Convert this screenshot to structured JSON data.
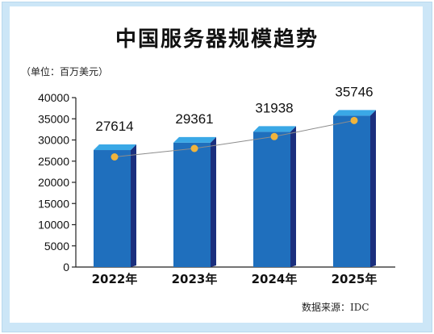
{
  "chart_data": {
    "type": "bar",
    "title": "中国服务器规模趋势",
    "unit_note": "（单位：百万美元）",
    "source": "数据来源：IDC",
    "categories": [
      "2022年",
      "2023年",
      "2024年",
      "2025年"
    ],
    "values": [
      27614,
      29361,
      31938,
      35746
    ],
    "trend_values": [
      26000,
      28000,
      30800,
      34600
    ],
    "ylim": [
      0,
      40000
    ],
    "yticks": [
      0,
      5000,
      10000,
      15000,
      20000,
      25000,
      30000,
      35000,
      40000
    ],
    "grid": false,
    "colors": {
      "bar_front": "#1f6fbd",
      "bar_top": "#3aa8e6",
      "bar_side": "#1b2f7e",
      "marker": "#f0b43c",
      "trend_line": "#8c8c8c"
    }
  }
}
